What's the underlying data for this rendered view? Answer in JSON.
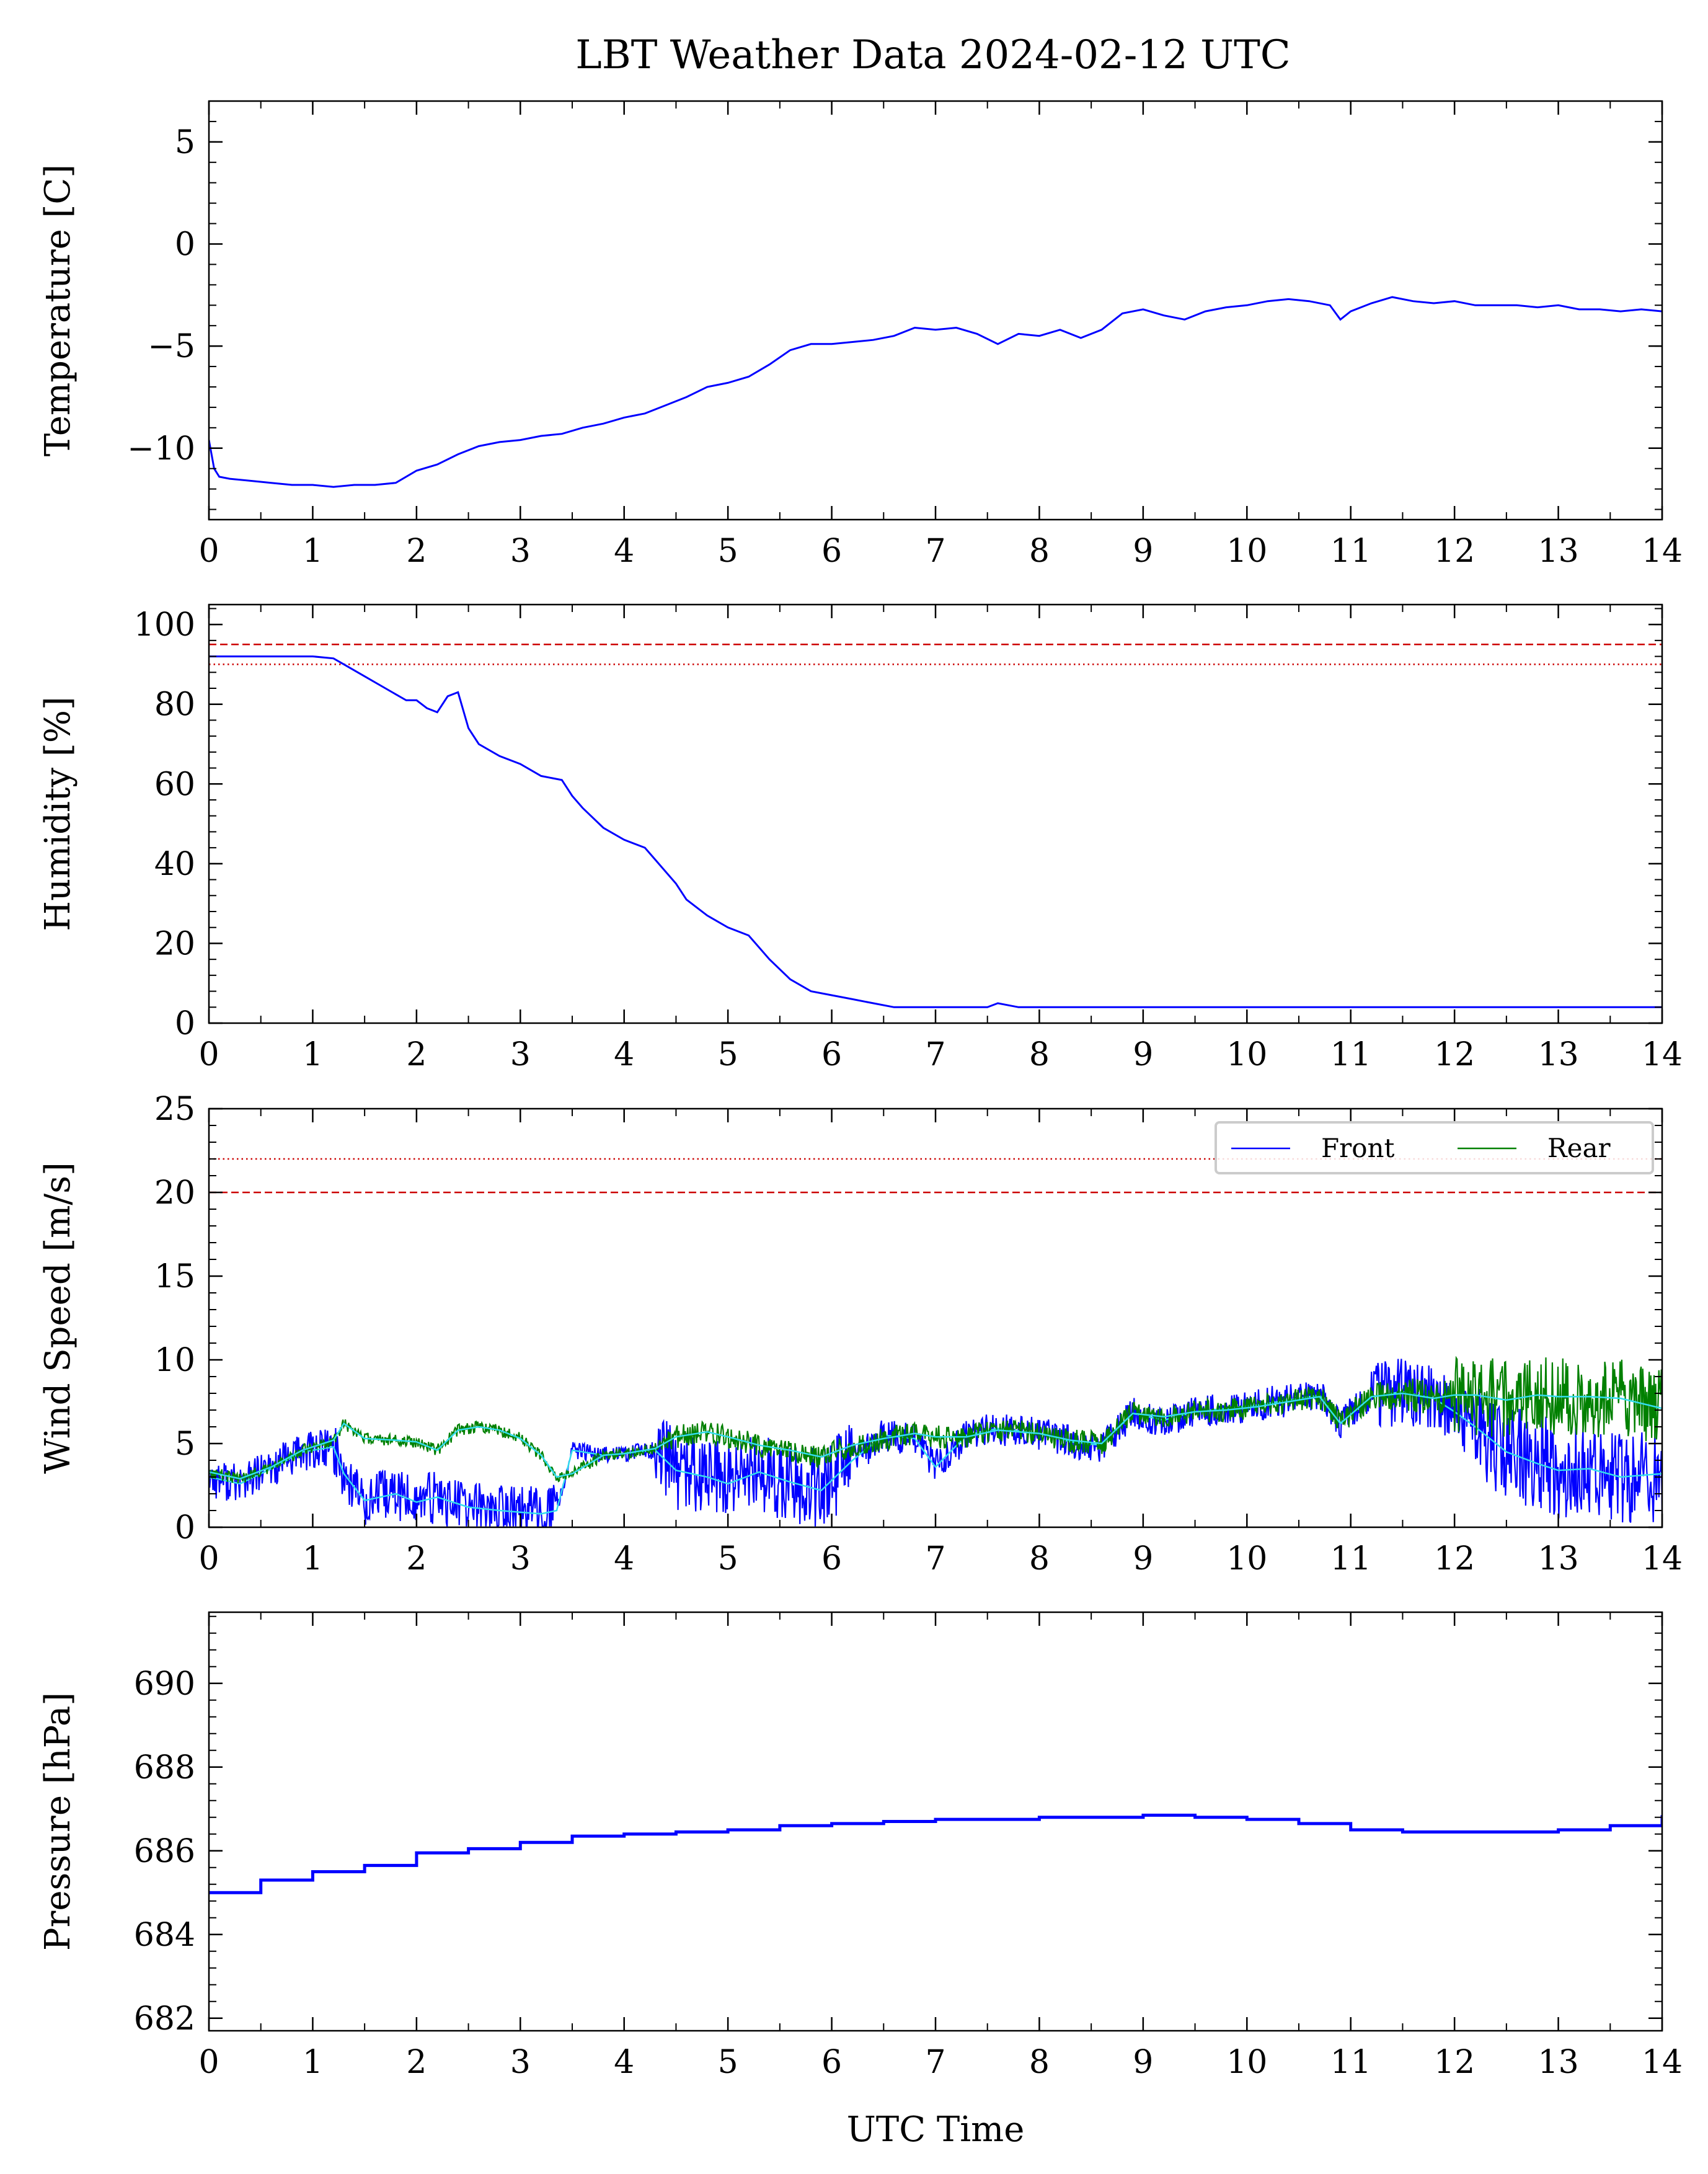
{
  "title": "LBT Weather Data 2024-02-12 UTC",
  "colors": {
    "front": "#0000ff",
    "rear": "#008000",
    "smooth": "#33ddee",
    "limit": "#cc0000"
  },
  "chart_data": [
    {
      "type": "line",
      "ylabel": "Temperature [C]",
      "xlim": [
        0,
        14
      ],
      "ylim": [
        -13.5,
        7
      ],
      "yticks": [
        5,
        0,
        -5,
        -10
      ],
      "yticklabels": [
        "5",
        "0",
        "−5",
        "−10"
      ],
      "xticks": [
        0,
        1,
        2,
        3,
        4,
        5,
        6,
        7,
        8,
        9,
        10,
        11,
        12,
        13,
        14
      ],
      "xticklabels": [
        "0",
        "1",
        "2",
        "3",
        "4",
        "5",
        "6",
        "7",
        "8",
        "9",
        "10",
        "11",
        "12",
        "13",
        "14"
      ],
      "series": [
        {
          "color": "blue",
          "x": [
            0,
            0.05,
            0.1,
            0.2,
            0.4,
            0.6,
            0.8,
            1.0,
            1.2,
            1.4,
            1.6,
            1.8,
            2.0,
            2.2,
            2.4,
            2.6,
            2.8,
            3.0,
            3.2,
            3.4,
            3.6,
            3.8,
            4.0,
            4.2,
            4.4,
            4.6,
            4.8,
            5.0,
            5.2,
            5.4,
            5.6,
            5.8,
            6.0,
            6.2,
            6.4,
            6.6,
            6.8,
            7.0,
            7.2,
            7.4,
            7.6,
            7.8,
            8.0,
            8.2,
            8.4,
            8.6,
            8.8,
            9.0,
            9.2,
            9.4,
            9.6,
            9.8,
            10.0,
            10.2,
            10.4,
            10.6,
            10.8,
            10.9,
            11.0,
            11.2,
            11.4,
            11.6,
            11.8,
            12.0,
            12.2,
            12.4,
            12.6,
            12.8,
            13.0,
            13.2,
            13.4,
            13.6,
            13.8,
            14.0
          ],
          "y": [
            -9.6,
            -11.0,
            -11.4,
            -11.5,
            -11.6,
            -11.7,
            -11.8,
            -11.8,
            -11.9,
            -11.8,
            -11.8,
            -11.7,
            -11.1,
            -10.8,
            -10.3,
            -9.9,
            -9.7,
            -9.6,
            -9.4,
            -9.3,
            -9.0,
            -8.8,
            -8.5,
            -8.3,
            -7.9,
            -7.5,
            -7.0,
            -6.8,
            -6.5,
            -5.9,
            -5.2,
            -4.9,
            -4.9,
            -4.8,
            -4.7,
            -4.5,
            -4.1,
            -4.2,
            -4.1,
            -4.4,
            -4.9,
            -4.4,
            -4.5,
            -4.2,
            -4.6,
            -4.2,
            -3.4,
            -3.2,
            -3.5,
            -3.7,
            -3.3,
            -3.1,
            -3.0,
            -2.8,
            -2.7,
            -2.8,
            -3.0,
            -3.7,
            -3.3,
            -2.9,
            -2.6,
            -2.8,
            -2.9,
            -2.8,
            -3.0,
            -3.0,
            -3.0,
            -3.1,
            -3.0,
            -3.2,
            -3.2,
            -3.3,
            -3.2,
            -3.3
          ]
        }
      ]
    },
    {
      "type": "line",
      "ylabel": "Humidity [%]",
      "xlim": [
        0,
        14
      ],
      "ylim": [
        0,
        105
      ],
      "yticks": [
        100,
        80,
        60,
        40,
        20,
        0
      ],
      "yticklabels": [
        "100",
        "80",
        "60",
        "40",
        "20",
        "0"
      ],
      "xticks": [
        0,
        1,
        2,
        3,
        4,
        5,
        6,
        7,
        8,
        9,
        10,
        11,
        12,
        13,
        14
      ],
      "xticklabels": [
        "0",
        "1",
        "2",
        "3",
        "4",
        "5",
        "6",
        "7",
        "8",
        "9",
        "10",
        "11",
        "12",
        "13",
        "14"
      ],
      "hlines": [
        {
          "y": 95,
          "style": "dashed"
        },
        {
          "y": 90,
          "style": "dotted"
        }
      ],
      "series": [
        {
          "color": "blue",
          "x": [
            0,
            0.2,
            0.5,
            0.8,
            1.0,
            1.2,
            1.3,
            1.5,
            1.7,
            1.9,
            2.0,
            2.1,
            2.2,
            2.3,
            2.4,
            2.5,
            2.6,
            2.8,
            3.0,
            3.2,
            3.4,
            3.5,
            3.6,
            3.8,
            4.0,
            4.2,
            4.3,
            4.5,
            4.6,
            4.8,
            5.0,
            5.2,
            5.4,
            5.6,
            5.8,
            6.0,
            6.2,
            6.4,
            6.6,
            6.8,
            7.0,
            7.5,
            7.6,
            7.8,
            8.0,
            9.0,
            10.0,
            11.0,
            12.0,
            13.0,
            14.0
          ],
          "y": [
            92,
            92,
            92,
            92,
            92,
            91.5,
            90,
            87,
            84,
            81,
            81,
            79,
            78,
            82,
            83,
            74,
            70,
            67,
            65,
            62,
            61,
            57,
            54,
            49,
            46,
            44,
            41,
            35,
            31,
            27,
            24,
            22,
            16,
            11,
            8,
            7,
            6,
            5,
            4,
            4,
            4,
            4,
            5,
            4,
            4,
            4,
            4,
            4,
            4,
            4,
            4
          ]
        }
      ]
    },
    {
      "type": "line",
      "ylabel": "Wind Speed [m/s]",
      "xlim": [
        0,
        14
      ],
      "ylim": [
        0,
        25
      ],
      "yticks": [
        25,
        20,
        15,
        10,
        5,
        0
      ],
      "yticklabels": [
        "25",
        "20",
        "15",
        "10",
        "5",
        "0"
      ],
      "xticks": [
        0,
        1,
        2,
        3,
        4,
        5,
        6,
        7,
        8,
        9,
        10,
        11,
        12,
        13,
        14
      ],
      "xticklabels": [
        "0",
        "1",
        "2",
        "3",
        "4",
        "5",
        "6",
        "7",
        "8",
        "9",
        "10",
        "11",
        "12",
        "13",
        "14"
      ],
      "hlines": [
        {
          "y": 22,
          "style": "dotted"
        },
        {
          "y": 20,
          "style": "dashed"
        }
      ],
      "legend": {
        "position": "top-right",
        "entries": [
          "Front",
          "Rear"
        ]
      },
      "series": [
        {
          "name": "Front",
          "color": "blue",
          "x": [
            0,
            0.3,
            0.6,
            0.9,
            1.2,
            1.3,
            1.5,
            1.8,
            2.0,
            2.2,
            2.5,
            2.8,
            3.0,
            3.2,
            3.35,
            3.5,
            3.8,
            4.0,
            4.3,
            4.5,
            4.8,
            5.0,
            5.3,
            5.6,
            5.9,
            6.2,
            6.5,
            6.8,
            7.0,
            7.3,
            7.6,
            8.0,
            8.3,
            8.6,
            8.9,
            9.2,
            9.5,
            9.8,
            10.1,
            10.4,
            10.7,
            10.9,
            11.2,
            11.5,
            11.8,
            12.0,
            12.2,
            12.5,
            12.8,
            13.0,
            13.3,
            13.6,
            14.0
          ],
          "y": [
            3.0,
            2.6,
            3.5,
            4.5,
            4.8,
            3.2,
            1.6,
            2.0,
            1.5,
            1.8,
            1.2,
            1.0,
            0.9,
            0.8,
            1.0,
            4.6,
            4.3,
            4.4,
            4.6,
            3.4,
            3.0,
            2.6,
            3.3,
            2.7,
            2.2,
            4.0,
            5.5,
            5.3,
            3.6,
            5.5,
            5.9,
            5.6,
            5.1,
            4.9,
            6.8,
            6.4,
            6.9,
            7.1,
            7.3,
            7.6,
            7.9,
            6.2,
            7.8,
            8.1,
            7.7,
            6.9,
            6.0,
            4.5,
            3.8,
            3.4,
            3.5,
            3.0,
            3.2
          ]
        },
        {
          "name": "Rear",
          "color": "green",
          "x": [
            0,
            0.3,
            0.6,
            0.9,
            1.2,
            1.3,
            1.5,
            1.8,
            2.0,
            2.2,
            2.4,
            2.6,
            2.8,
            3.0,
            3.2,
            3.35,
            3.5,
            3.8,
            4.0,
            4.3,
            4.5,
            4.8,
            5.0,
            5.3,
            5.6,
            5.9,
            6.2,
            6.5,
            6.8,
            7.0,
            7.3,
            7.6,
            8.0,
            8.3,
            8.6,
            8.9,
            9.2,
            9.5,
            9.8,
            10.1,
            10.4,
            10.7,
            10.9,
            11.2,
            11.5,
            11.8,
            12.0,
            12.2,
            12.5,
            12.8,
            13.0,
            13.3,
            13.6,
            14.0
          ],
          "y": [
            3.3,
            2.9,
            3.6,
            4.6,
            5.2,
            6.2,
            5.3,
            5.2,
            5.1,
            4.6,
            5.8,
            6.0,
            5.8,
            5.3,
            4.3,
            3.0,
            3.2,
            4.3,
            4.4,
            4.7,
            5.4,
            5.7,
            5.4,
            4.9,
            4.6,
            4.2,
            4.9,
            5.3,
            5.6,
            5.4,
            5.4,
            5.8,
            5.6,
            5.2,
            5.0,
            6.8,
            6.6,
            6.9,
            7.0,
            7.2,
            7.5,
            7.8,
            6.2,
            7.8,
            8.0,
            7.7,
            7.9,
            7.9,
            7.6,
            7.9,
            7.8,
            7.8,
            7.7,
            7.1
          ]
        }
      ]
    },
    {
      "type": "line",
      "ylabel": "Pressure [hPa]",
      "xlabel": "UTC Time",
      "xlim": [
        0,
        14
      ],
      "ylim": [
        681.7,
        691.7
      ],
      "yticks": [
        690,
        688,
        686,
        684,
        682
      ],
      "yticklabels": [
        "690",
        "688",
        "686",
        "684",
        "682"
      ],
      "xticks": [
        0,
        1,
        2,
        3,
        4,
        5,
        6,
        7,
        8,
        9,
        10,
        11,
        12,
        13,
        14
      ],
      "xticklabels": [
        "0",
        "1",
        "2",
        "3",
        "4",
        "5",
        "6",
        "7",
        "8",
        "9",
        "10",
        "11",
        "12",
        "13",
        "14"
      ],
      "series": [
        {
          "color": "blue",
          "x": [
            0,
            0.5,
            1.0,
            1.5,
            2.0,
            2.5,
            3.0,
            3.5,
            4.0,
            4.5,
            5.0,
            5.5,
            6.0,
            6.5,
            7.0,
            7.5,
            8.0,
            8.5,
            9.0,
            9.5,
            10.0,
            10.5,
            11.0,
            11.5,
            12.0,
            12.5,
            13.0,
            13.5,
            14.0
          ],
          "y": [
            685.0,
            685.3,
            685.5,
            685.65,
            685.95,
            686.05,
            686.2,
            686.35,
            686.4,
            686.45,
            686.5,
            686.6,
            686.65,
            686.7,
            686.75,
            686.75,
            686.8,
            686.8,
            686.85,
            686.8,
            686.75,
            686.65,
            686.5,
            686.45,
            686.45,
            686.45,
            686.5,
            686.6,
            686.85
          ]
        }
      ]
    }
  ]
}
